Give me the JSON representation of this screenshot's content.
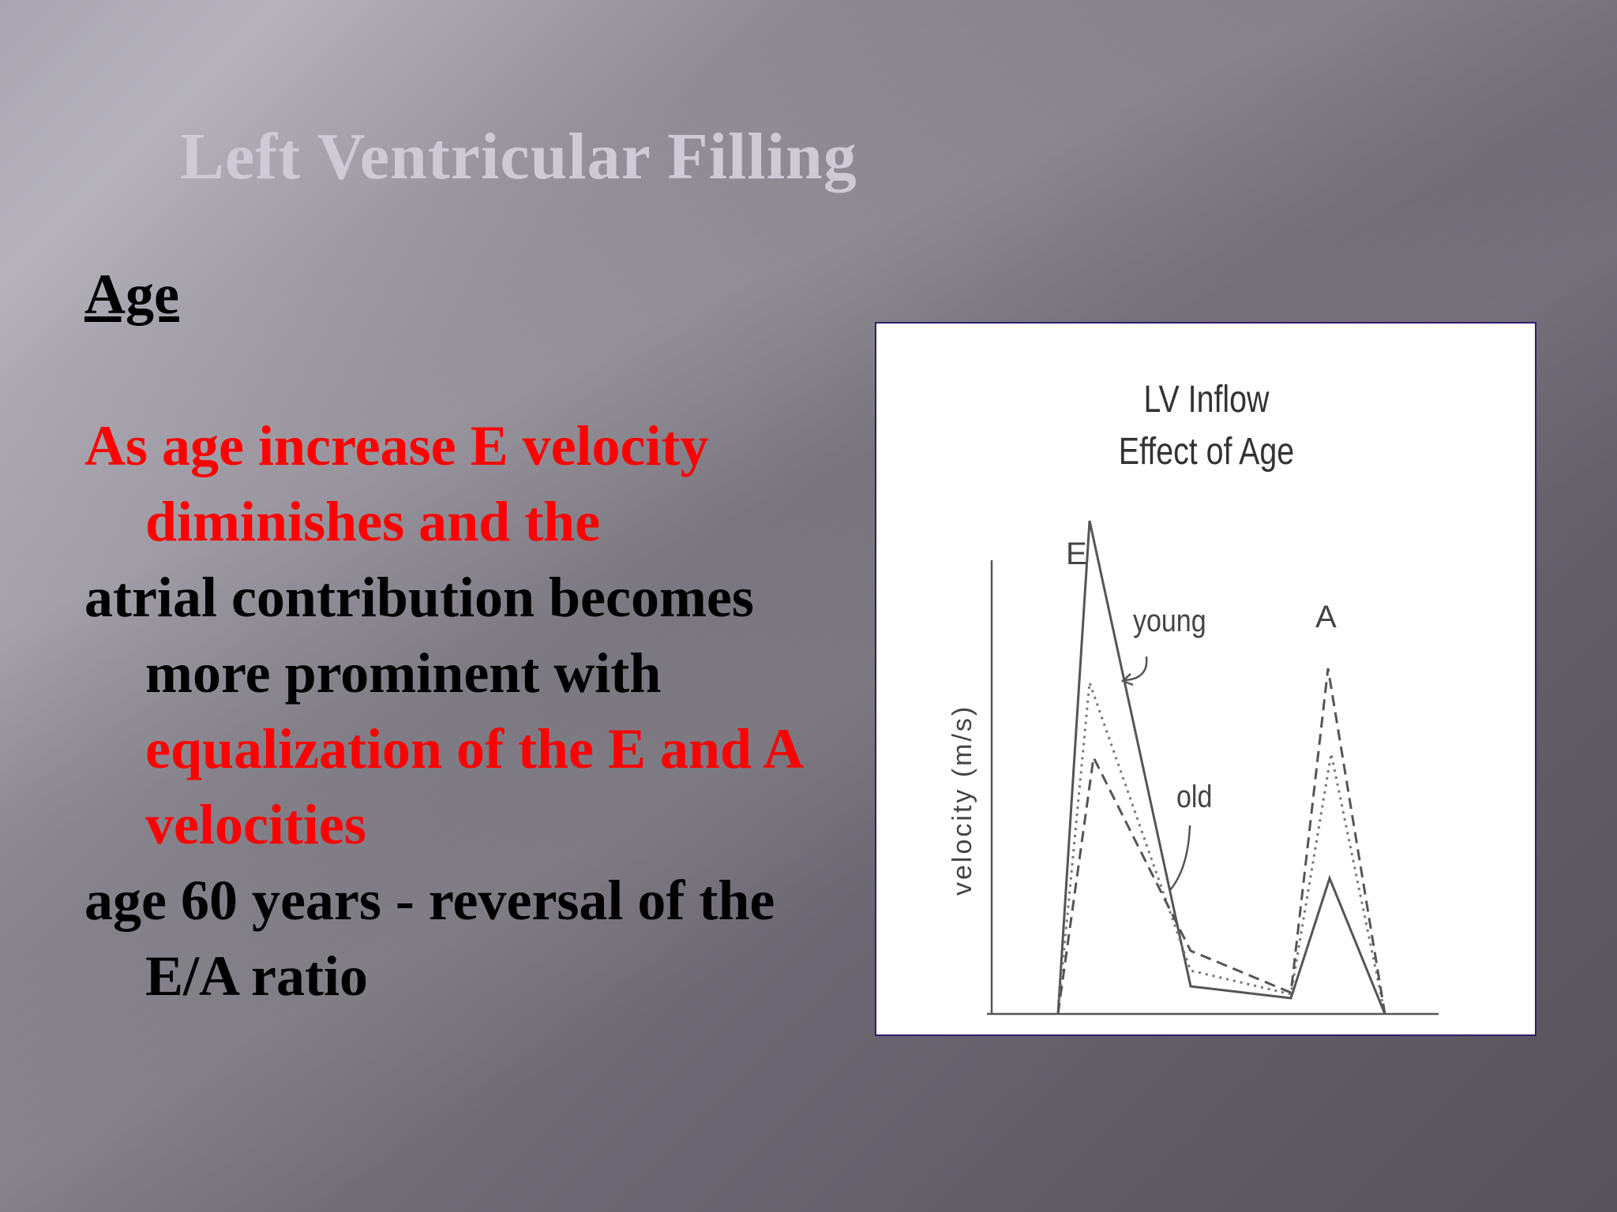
{
  "slide": {
    "title": "Left Ventricular Filling",
    "heading": "Age",
    "paragraphs": [
      {
        "text": "As age increase E velocity diminishes and the",
        "color": "#ff0000"
      },
      {
        "text": "atrial contribution becomes more prominent with",
        "color": "#000000",
        "continuation": "equalization of the E and A velocities",
        "continuation_color": "#ff0000"
      },
      {
        "text": "age 60 years - reversal of the E/A ratio",
        "color": "#000000"
      }
    ]
  },
  "figure": {
    "title_line1": "LV Inflow",
    "title_line2": "Effect of Age",
    "ylabel": "velocity (m/s)",
    "peak_e_label": "E",
    "peak_a_label": "A",
    "young_label": "young",
    "old_label": "old"
  },
  "colors": {
    "title": "#cfcbd6",
    "emphasis": "#ff0000",
    "body_text": "#000000"
  }
}
